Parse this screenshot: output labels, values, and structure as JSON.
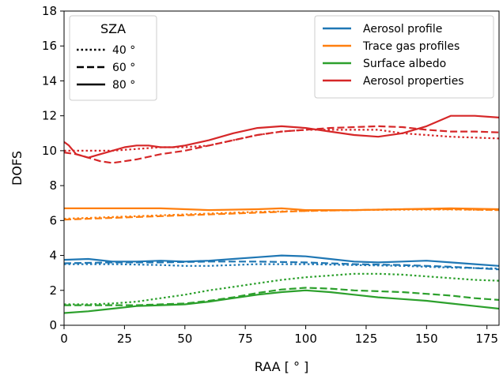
{
  "chart_data": {
    "type": "line",
    "xlabel": "RAA [$^\\circ$]",
    "xlabel_display": "RAA [ ° ]",
    "ylabel": "DOFS",
    "xlim": [
      0,
      180
    ],
    "ylim": [
      0,
      18
    ],
    "xticks": [
      0,
      25,
      50,
      75,
      100,
      125,
      150,
      175
    ],
    "yticks": [
      0,
      2,
      4,
      6,
      8,
      10,
      12,
      14,
      16,
      18
    ],
    "grid": false,
    "legend_sza": {
      "position": "top-left",
      "title": "SZA",
      "entries": [
        {
          "label": "40 °",
          "style": "dotted"
        },
        {
          "label": "60 °",
          "style": "dashed"
        },
        {
          "label": "80 °",
          "style": "solid"
        }
      ]
    },
    "legend_quantities": {
      "position": "top-right",
      "entries": [
        {
          "label": "Aerosol profile",
          "color": "#1f77b4"
        },
        {
          "label": "Trace gas profiles",
          "color": "#ff7f0e"
        },
        {
          "label": "Surface albedo",
          "color": "#2ca02c"
        },
        {
          "label": "Aerosol properties",
          "color": "#d62728"
        }
      ]
    },
    "series": [
      {
        "quantity": "Aerosol properties",
        "sza": "80 °",
        "color": "#d62728",
        "style": "solid",
        "x": [
          0,
          2,
          5,
          10,
          15,
          20,
          25,
          30,
          35,
          40,
          45,
          50,
          60,
          70,
          80,
          90,
          100,
          110,
          120,
          130,
          140,
          150,
          160,
          170,
          180
        ],
        "y": [
          10.5,
          10.3,
          9.8,
          9.6,
          9.8,
          10.0,
          10.2,
          10.3,
          10.3,
          10.2,
          10.2,
          10.3,
          10.6,
          11.0,
          11.3,
          11.4,
          11.3,
          11.1,
          10.9,
          10.8,
          11.0,
          11.4,
          12.0,
          12.0,
          11.9
        ]
      },
      {
        "quantity": "Aerosol properties",
        "sza": "60 °",
        "color": "#d62728",
        "style": "dashed",
        "x": [
          0,
          5,
          10,
          15,
          20,
          25,
          30,
          40,
          50,
          60,
          70,
          80,
          90,
          100,
          110,
          120,
          130,
          140,
          150,
          160,
          170,
          180
        ],
        "y": [
          9.9,
          9.8,
          9.6,
          9.4,
          9.3,
          9.4,
          9.5,
          9.8,
          10.0,
          10.3,
          10.6,
          10.9,
          11.1,
          11.2,
          11.3,
          11.35,
          11.4,
          11.35,
          11.2,
          11.1,
          11.1,
          11.05
        ]
      },
      {
        "quantity": "Aerosol properties",
        "sza": "40 °",
        "color": "#d62728",
        "style": "dotted",
        "x": [
          0,
          10,
          20,
          30,
          40,
          50,
          60,
          70,
          80,
          90,
          100,
          110,
          120,
          130,
          140,
          150,
          160,
          170,
          180
        ],
        "y": [
          10.0,
          10.0,
          10.0,
          10.1,
          10.2,
          10.2,
          10.3,
          10.6,
          10.9,
          11.1,
          11.2,
          11.2,
          11.2,
          11.2,
          11.0,
          10.9,
          10.8,
          10.75,
          10.7
        ]
      },
      {
        "quantity": "Trace gas profiles",
        "sza": "80 °",
        "color": "#ff7f0e",
        "style": "solid",
        "x": [
          0,
          20,
          40,
          60,
          80,
          90,
          100,
          120,
          140,
          160,
          180
        ],
        "y": [
          6.7,
          6.7,
          6.7,
          6.6,
          6.65,
          6.7,
          6.6,
          6.6,
          6.65,
          6.7,
          6.65
        ]
      },
      {
        "quantity": "Trace gas profiles",
        "sza": "60 °",
        "color": "#ff7f0e",
        "style": "dashed",
        "x": [
          0,
          20,
          40,
          60,
          80,
          100,
          120,
          140,
          160,
          180
        ],
        "y": [
          6.05,
          6.15,
          6.25,
          6.35,
          6.45,
          6.55,
          6.6,
          6.65,
          6.65,
          6.6
        ]
      },
      {
        "quantity": "Trace gas profiles",
        "sza": "40 °",
        "color": "#ff7f0e",
        "style": "dotted",
        "x": [
          0,
          20,
          40,
          60,
          80,
          100,
          120,
          140,
          160,
          180
        ],
        "y": [
          6.1,
          6.2,
          6.3,
          6.4,
          6.5,
          6.55,
          6.6,
          6.62,
          6.63,
          6.6
        ]
      },
      {
        "quantity": "Aerosol profile",
        "sza": "80 °",
        "color": "#1f77b4",
        "style": "solid",
        "x": [
          0,
          10,
          20,
          30,
          40,
          50,
          60,
          70,
          80,
          90,
          100,
          110,
          120,
          130,
          140,
          150,
          160,
          170,
          180
        ],
        "y": [
          3.75,
          3.8,
          3.65,
          3.65,
          3.7,
          3.65,
          3.7,
          3.8,
          3.9,
          4.0,
          3.95,
          3.8,
          3.65,
          3.6,
          3.65,
          3.7,
          3.6,
          3.5,
          3.4
        ]
      },
      {
        "quantity": "Aerosol profile",
        "sza": "60 °",
        "color": "#1f77b4",
        "style": "dashed",
        "x": [
          0,
          20,
          40,
          60,
          80,
          100,
          120,
          140,
          160,
          180
        ],
        "y": [
          3.55,
          3.6,
          3.6,
          3.65,
          3.65,
          3.6,
          3.5,
          3.45,
          3.35,
          3.2
        ]
      },
      {
        "quantity": "Aerosol profile",
        "sza": "40 °",
        "color": "#1f77b4",
        "style": "dotted",
        "x": [
          0,
          20,
          40,
          50,
          60,
          80,
          100,
          120,
          140,
          160,
          180
        ],
        "y": [
          3.5,
          3.5,
          3.45,
          3.4,
          3.4,
          3.5,
          3.5,
          3.45,
          3.4,
          3.3,
          3.25
        ]
      },
      {
        "quantity": "Surface albedo",
        "sza": "80 °",
        "color": "#2ca02c",
        "style": "solid",
        "x": [
          0,
          10,
          20,
          30,
          40,
          50,
          60,
          70,
          80,
          90,
          100,
          110,
          120,
          130,
          140,
          150,
          160,
          170,
          180
        ],
        "y": [
          0.7,
          0.8,
          0.95,
          1.1,
          1.15,
          1.2,
          1.35,
          1.55,
          1.75,
          1.9,
          2.0,
          1.9,
          1.75,
          1.6,
          1.5,
          1.4,
          1.25,
          1.1,
          0.95
        ]
      },
      {
        "quantity": "Surface albedo",
        "sza": "60 °",
        "color": "#2ca02c",
        "style": "dashed",
        "x": [
          0,
          10,
          20,
          30,
          40,
          50,
          60,
          70,
          80,
          90,
          100,
          110,
          120,
          130,
          140,
          150,
          160,
          170,
          180
        ],
        "y": [
          1.15,
          1.15,
          1.15,
          1.15,
          1.2,
          1.25,
          1.4,
          1.6,
          1.85,
          2.05,
          2.15,
          2.1,
          2.0,
          1.95,
          1.9,
          1.8,
          1.7,
          1.55,
          1.45
        ]
      },
      {
        "quantity": "Surface albedo",
        "sza": "40 °",
        "color": "#2ca02c",
        "style": "dotted",
        "x": [
          0,
          10,
          20,
          30,
          40,
          50,
          60,
          70,
          80,
          90,
          100,
          110,
          120,
          130,
          140,
          150,
          160,
          170,
          180
        ],
        "y": [
          1.2,
          1.2,
          1.25,
          1.35,
          1.55,
          1.75,
          2.0,
          2.2,
          2.4,
          2.6,
          2.75,
          2.85,
          2.95,
          2.95,
          2.9,
          2.8,
          2.7,
          2.6,
          2.55
        ]
      }
    ]
  }
}
